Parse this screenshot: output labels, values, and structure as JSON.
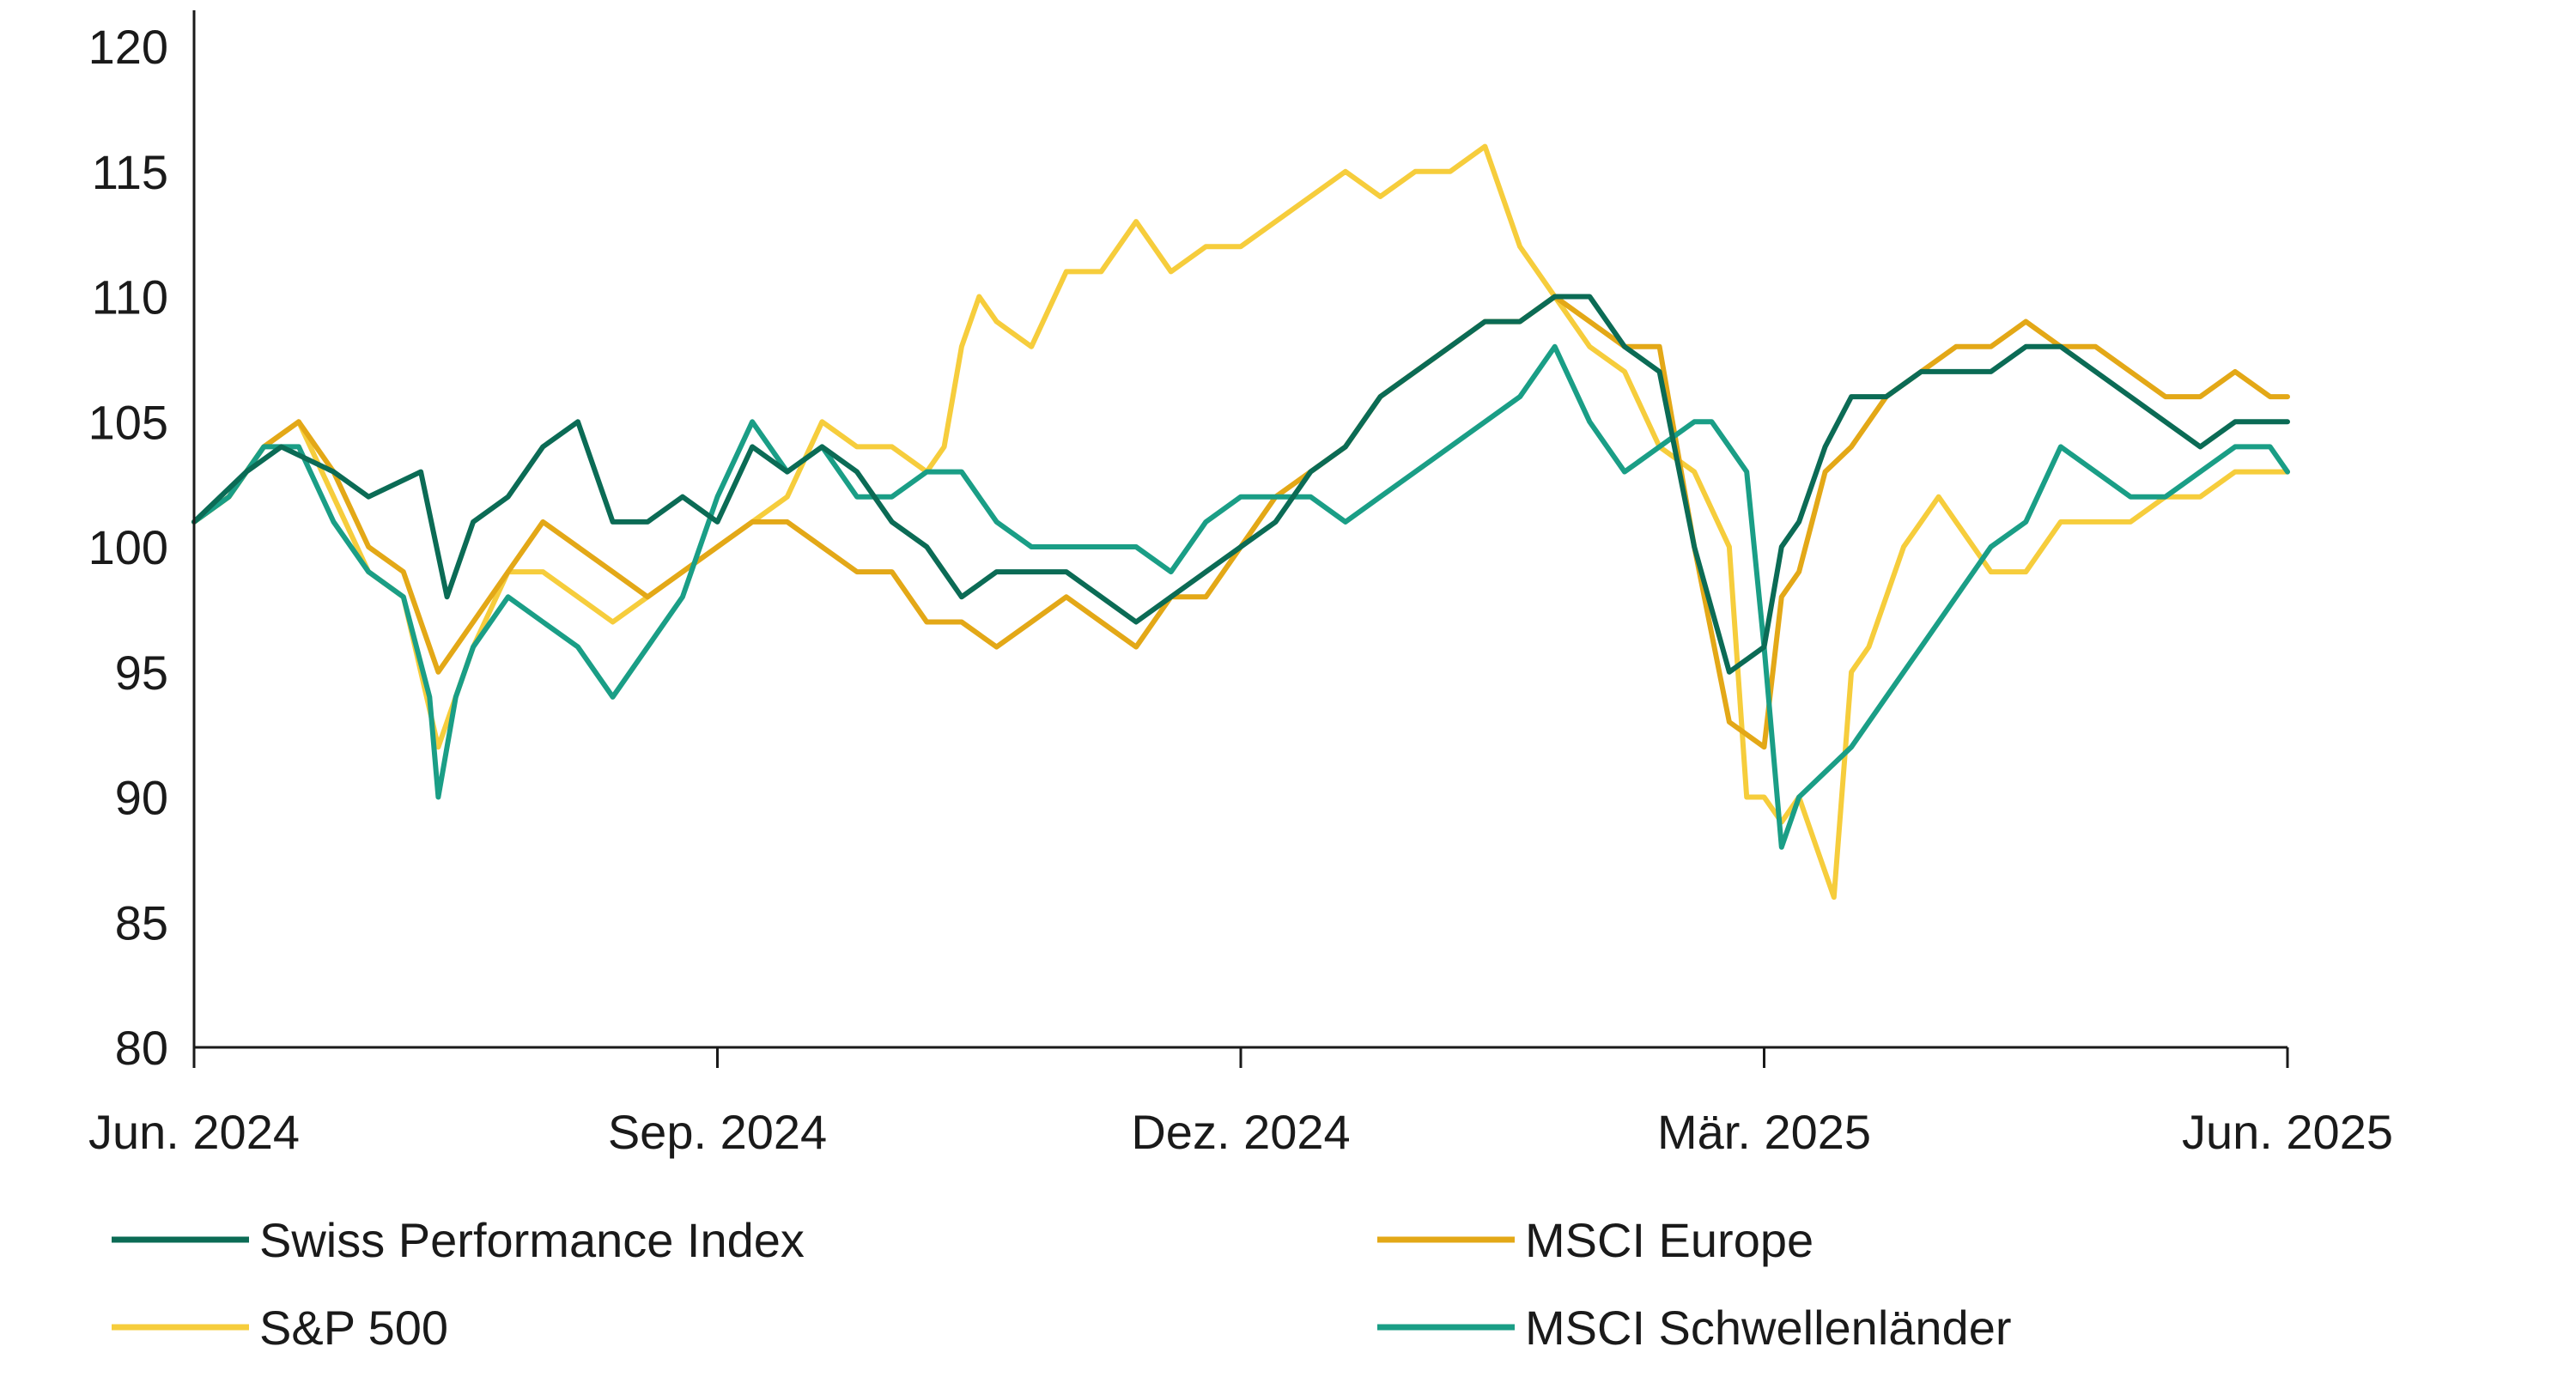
{
  "chart_data": {
    "type": "line",
    "title": "",
    "xlabel": "",
    "ylabel": "",
    "ylim": [
      80,
      120
    ],
    "yticks": [
      80,
      85,
      90,
      95,
      100,
      105,
      110,
      115,
      120
    ],
    "xtick_labels": [
      "Jun. 2024",
      "Sep. 2024",
      "Dez. 2024",
      "Mär. 2025",
      "Jun. 2025"
    ],
    "xlim": [
      0,
      12
    ],
    "grid": false,
    "legend_position": "bottom",
    "series": [
      {
        "name": "Swiss Performance Index",
        "color": "#0b6b55",
        "x": [
          0,
          0.15,
          0.3,
          0.5,
          0.8,
          1.0,
          1.3,
          1.45,
          1.6,
          1.8,
          2.0,
          2.2,
          2.4,
          2.6,
          2.8,
          3.0,
          3.2,
          3.4,
          3.6,
          3.8,
          4.0,
          4.2,
          4.4,
          4.6,
          4.8,
          5.0,
          5.2,
          5.4,
          5.6,
          5.8,
          6.0,
          6.2,
          6.4,
          6.6,
          6.8,
          7.0,
          7.2,
          7.4,
          7.6,
          7.8,
          8.0,
          8.2,
          8.4,
          8.6,
          8.8,
          9.0,
          9.1,
          9.2,
          9.35,
          9.5,
          9.7,
          9.9,
          10.1,
          10.3,
          10.5,
          10.7,
          10.9,
          11.1,
          11.3,
          11.5,
          11.7,
          11.9,
          12.0
        ],
        "values": [
          101,
          102,
          103,
          104,
          103,
          102,
          103,
          98,
          101,
          102,
          104,
          105,
          101,
          101,
          102,
          101,
          104,
          103,
          104,
          103,
          101,
          100,
          98,
          99,
          99,
          99,
          98,
          97,
          98,
          99,
          100,
          101,
          103,
          104,
          106,
          107,
          108,
          109,
          109,
          110,
          110,
          108,
          107,
          100,
          95,
          96,
          100,
          101,
          104,
          106,
          106,
          107,
          107,
          107,
          108,
          108,
          107,
          106,
          105,
          104,
          105,
          105,
          105
        ]
      },
      {
        "name": "MSCI Europe",
        "color": "#e3a817",
        "x": [
          0,
          0.2,
          0.4,
          0.6,
          0.8,
          1.0,
          1.2,
          1.4,
          1.6,
          1.8,
          2.0,
          2.2,
          2.4,
          2.6,
          2.8,
          3.0,
          3.2,
          3.4,
          3.6,
          3.8,
          4.0,
          4.2,
          4.4,
          4.6,
          4.8,
          5.0,
          5.2,
          5.4,
          5.6,
          5.8,
          6.0,
          6.2,
          6.4,
          6.6,
          6.8,
          7.0,
          7.2,
          7.4,
          7.6,
          7.8,
          8.0,
          8.2,
          8.4,
          8.6,
          8.8,
          9.0,
          9.1,
          9.2,
          9.35,
          9.5,
          9.7,
          9.9,
          10.1,
          10.3,
          10.5,
          10.7,
          10.9,
          11.1,
          11.3,
          11.5,
          11.7,
          11.9,
          12.0
        ],
        "values": [
          101,
          102,
          104,
          105,
          103,
          100,
          99,
          95,
          97,
          99,
          101,
          100,
          99,
          98,
          99,
          100,
          101,
          101,
          100,
          99,
          99,
          97,
          97,
          96,
          97,
          98,
          97,
          96,
          98,
          98,
          100,
          102,
          103,
          104,
          106,
          107,
          108,
          109,
          109,
          110,
          109,
          108,
          108,
          100,
          93,
          92,
          98,
          99,
          103,
          104,
          106,
          107,
          108,
          108,
          109,
          108,
          108,
          107,
          106,
          106,
          107,
          106,
          106
        ]
      },
      {
        "name": "S&P 500",
        "color": "#f6cd3c",
        "x": [
          0,
          0.2,
          0.4,
          0.6,
          0.8,
          1.0,
          1.2,
          1.4,
          1.6,
          1.8,
          2.0,
          2.2,
          2.4,
          2.6,
          2.8,
          3.0,
          3.2,
          3.4,
          3.6,
          3.8,
          4.0,
          4.2,
          4.3,
          4.4,
          4.5,
          4.6,
          4.8,
          5.0,
          5.2,
          5.4,
          5.6,
          5.8,
          6.0,
          6.2,
          6.4,
          6.6,
          6.8,
          7.0,
          7.2,
          7.4,
          7.6,
          7.8,
          8.0,
          8.2,
          8.4,
          8.6,
          8.8,
          8.9,
          9.0,
          9.1,
          9.2,
          9.3,
          9.4,
          9.5,
          9.6,
          9.7,
          9.8,
          9.9,
          10.0,
          10.1,
          10.3,
          10.5,
          10.7,
          10.9,
          11.1,
          11.3,
          11.5,
          11.7,
          11.9,
          12.0
        ],
        "values": [
          101,
          102,
          104,
          105,
          102,
          99,
          98,
          92,
          96,
          99,
          99,
          98,
          97,
          98,
          99,
          100,
          101,
          102,
          105,
          104,
          104,
          103,
          104,
          108,
          110,
          109,
          108,
          111,
          111,
          113,
          111,
          112,
          112,
          113,
          114,
          115,
          114,
          115,
          115,
          116,
          112,
          110,
          108,
          107,
          104,
          103,
          100,
          90,
          90,
          89,
          90,
          88,
          86,
          95,
          96,
          98,
          100,
          101,
          102,
          101,
          99,
          99,
          101,
          101,
          101,
          102,
          102,
          103,
          103,
          103
        ]
      },
      {
        "name": "MSCI Schwellenländer",
        "color": "#1a9e86",
        "x": [
          0,
          0.2,
          0.4,
          0.6,
          0.8,
          1.0,
          1.2,
          1.35,
          1.4,
          1.5,
          1.6,
          1.8,
          2.0,
          2.2,
          2.4,
          2.6,
          2.8,
          3.0,
          3.2,
          3.4,
          3.6,
          3.8,
          4.0,
          4.2,
          4.4,
          4.6,
          4.8,
          5.0,
          5.2,
          5.4,
          5.6,
          5.8,
          6.0,
          6.2,
          6.4,
          6.6,
          6.8,
          7.0,
          7.2,
          7.4,
          7.6,
          7.8,
          8.0,
          8.2,
          8.4,
          8.6,
          8.7,
          8.8,
          8.9,
          9.0,
          9.1,
          9.2,
          9.35,
          9.5,
          9.7,
          9.9,
          10.1,
          10.3,
          10.5,
          10.7,
          10.9,
          11.1,
          11.3,
          11.5,
          11.7,
          11.9,
          12.0
        ],
        "values": [
          101,
          102,
          104,
          104,
          101,
          99,
          98,
          94,
          90,
          94,
          96,
          98,
          97,
          96,
          94,
          96,
          98,
          102,
          105,
          103,
          104,
          102,
          102,
          103,
          103,
          101,
          100,
          100,
          100,
          100,
          99,
          101,
          102,
          102,
          102,
          101,
          102,
          103,
          104,
          105,
          106,
          108,
          105,
          103,
          104,
          105,
          105,
          104,
          103,
          96,
          88,
          90,
          91,
          92,
          94,
          96,
          98,
          100,
          101,
          104,
          103,
          102,
          102,
          103,
          104,
          104,
          103
        ]
      }
    ]
  }
}
